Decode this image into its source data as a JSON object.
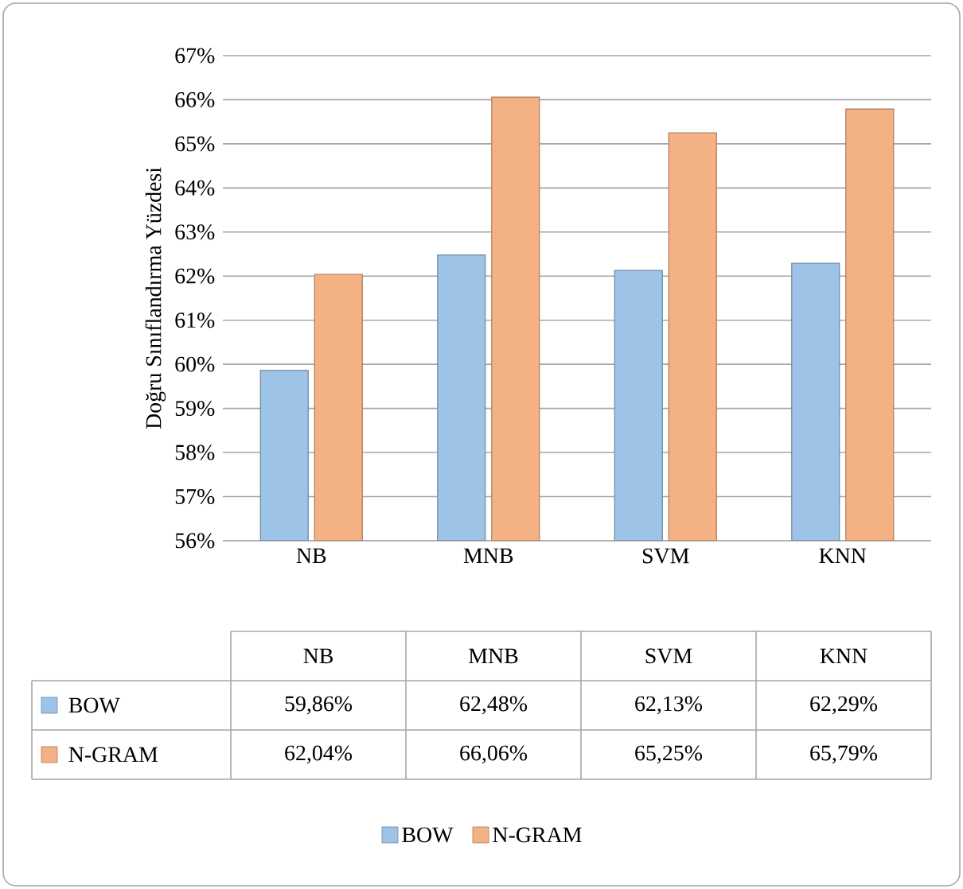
{
  "chart_data": {
    "type": "bar",
    "ylabel": "Doğru Sınıflandırma Yüzdesi",
    "categories": [
      "NB",
      "MNB",
      "SVM",
      "KNN"
    ],
    "series": [
      {
        "name": "BOW",
        "color": "#9dc3e6",
        "values": [
          59.86,
          62.48,
          62.13,
          62.29
        ],
        "value_labels": [
          "59,86%",
          "62,48%",
          "62,13%",
          "62,29%"
        ]
      },
      {
        "name": "N-GRAM",
        "color": "#f4b183",
        "values": [
          62.04,
          66.06,
          65.25,
          65.79
        ],
        "value_labels": [
          "62,04%",
          "66,06%",
          "65,25%",
          "65,79%"
        ]
      }
    ],
    "ylim": [
      56,
      67
    ],
    "yticks": [
      {
        "value": 56,
        "label": "56%"
      },
      {
        "value": 57,
        "label": "57%"
      },
      {
        "value": 58,
        "label": "58%"
      },
      {
        "value": 59,
        "label": "59%"
      },
      {
        "value": 60,
        "label": "60%"
      },
      {
        "value": 61,
        "label": "61%"
      },
      {
        "value": 62,
        "label": "62%"
      },
      {
        "value": 63,
        "label": "63%"
      },
      {
        "value": 64,
        "label": "64%"
      },
      {
        "value": 65,
        "label": "65%"
      },
      {
        "value": 66,
        "label": "66%"
      },
      {
        "value": 67,
        "label": "67%"
      }
    ],
    "grid": "y",
    "legend": "bottom"
  }
}
